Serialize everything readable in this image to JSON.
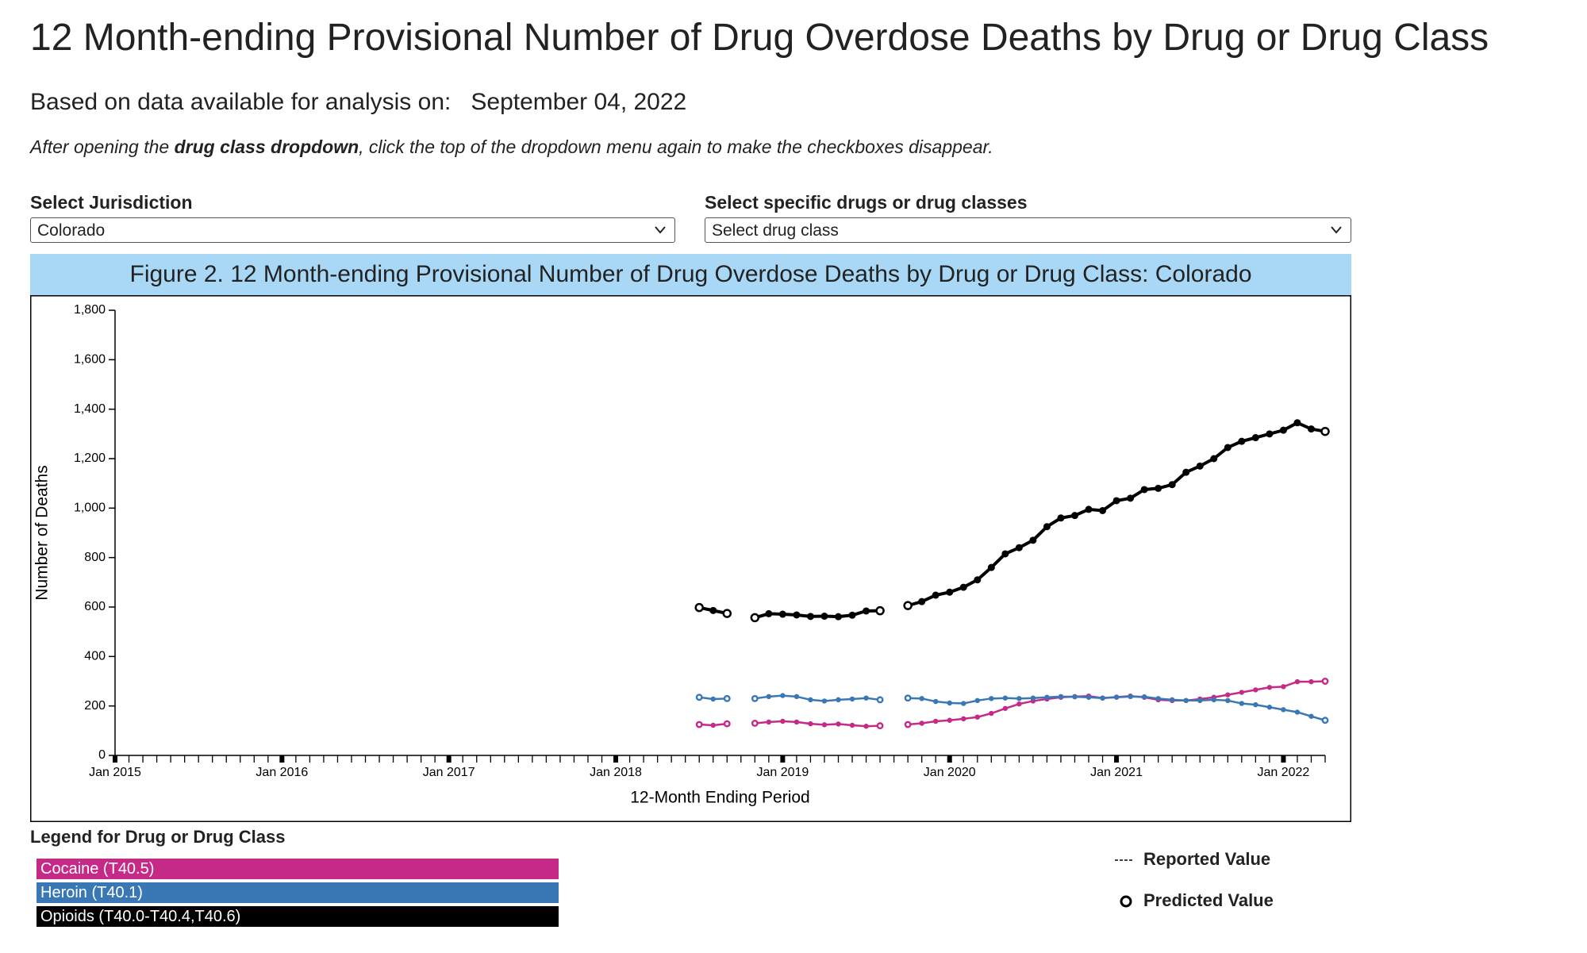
{
  "header": {
    "title": "12 Month-ending Provisional Number of Drug Overdose Deaths by Drug or Drug Class",
    "date_label": "Based on data available for analysis on:",
    "date": "September 04, 2022",
    "instruction": [
      "After opening the ",
      "drug class dropdown",
      ", click the top of the dropdown menu again to make the checkboxes disappear."
    ]
  },
  "controls": {
    "jurisdiction_label": "Select Jurisdiction",
    "jurisdiction": "Colorado",
    "drug_label": "Select specific drugs or drug classes",
    "drug": "Select drug class"
  },
  "chart_data": {
    "type": "line",
    "title": "Figure 2. 12 Month-ending Provisional Number of Drug Overdose Deaths by Drug or Drug Class: Colorado",
    "xlabel": "12-Month Ending Period",
    "ylabel": "Number of Deaths",
    "xlim": [
      "Jan 2015",
      "Apr 2022"
    ],
    "xticks": [
      "Jan 2015",
      "Jan 2016",
      "Jan 2017",
      "Jan 2018",
      "Jan 2019",
      "Jan 2020",
      "Jan 2021",
      "Jan 2022"
    ],
    "ylim": [
      0,
      1800
    ],
    "yticks": [
      0,
      200,
      400,
      600,
      800,
      {
        "value": 1000,
        "label": "1,000"
      },
      {
        "value": 1200,
        "label": "1,200"
      },
      {
        "value": 1400,
        "label": "1,400"
      },
      {
        "value": 1600,
        "label": "1,600"
      },
      {
        "value": 1800,
        "label": "1,800"
      }
    ],
    "x": [
      "Jul 2018",
      "Aug 2018",
      "Sep 2018",
      "Oct 2018",
      "Nov 2018",
      "Dec 2018",
      "Jan 2019",
      "Feb 2019",
      "Mar 2019",
      "Apr 2019",
      "May 2019",
      "Jun 2019",
      "Jul 2019",
      "Aug 2019",
      "Sep 2019",
      "Oct 2019",
      "Nov 2019",
      "Dec 2019",
      "Jan 2020",
      "Feb 2020",
      "Mar 2020",
      "Apr 2020",
      "May 2020",
      "Jun 2020",
      "Jul 2020",
      "Aug 2020",
      "Sep 2020",
      "Oct 2020",
      "Nov 2020",
      "Dec 2020",
      "Jan 2021",
      "Feb 2021",
      "Mar 2021",
      "Apr 2021",
      "May 2021",
      "Jun 2021",
      "Jul 2021",
      "Aug 2021",
      "Sep 2021",
      "Oct 2021",
      "Nov 2021",
      "Dec 2021",
      "Jan 2022",
      "Feb 2022",
      "Mar 2022",
      "Apr 2022"
    ],
    "series": [
      {
        "name": "Cocaine (T40.5)",
        "color": "#c52a87",
        "values": [
          125,
          122,
          128,
          null,
          130,
          135,
          138,
          135,
          128,
          124,
          127,
          122,
          118,
          120,
          null,
          125,
          130,
          138,
          142,
          148,
          155,
          170,
          190,
          208,
          220,
          228,
          235,
          238,
          240,
          232,
          236,
          240,
          235,
          225,
          222,
          222,
          228,
          235,
          245,
          255,
          265,
          275,
          278,
          298,
          298,
          300
        ]
      },
      {
        "name": "Heroin (T40.1)",
        "color": "#3a78b5",
        "values": [
          235,
          228,
          230,
          null,
          230,
          238,
          242,
          238,
          225,
          220,
          225,
          228,
          232,
          225,
          null,
          232,
          230,
          218,
          212,
          210,
          222,
          230,
          232,
          230,
          232,
          235,
          238,
          237,
          235,
          232,
          235,
          238,
          237,
          230,
          225,
          222,
          222,
          225,
          222,
          210,
          205,
          195,
          185,
          175,
          158,
          142
        ]
      },
      {
        "name": "Opioids (T40.0-T40.4,T40.6)",
        "color": "#000000",
        "values": [
          598,
          586,
          574,
          null,
          557,
          573,
          571,
          568,
          562,
          563,
          561,
          567,
          584,
          585,
          null,
          606,
          622,
          648,
          660,
          680,
          710,
          760,
          815,
          840,
          870,
          925,
          960,
          970,
          995,
          990,
          1030,
          1040,
          1075,
          1080,
          1095,
          1145,
          1170,
          1200,
          1245,
          1270,
          1285,
          1300,
          1315,
          1345,
          1320,
          1310
        ]
      }
    ],
    "legend_title": "Legend for Drug or Drug Class",
    "reported_label": "Reported Value",
    "predicted_label": "Predicted Value"
  }
}
